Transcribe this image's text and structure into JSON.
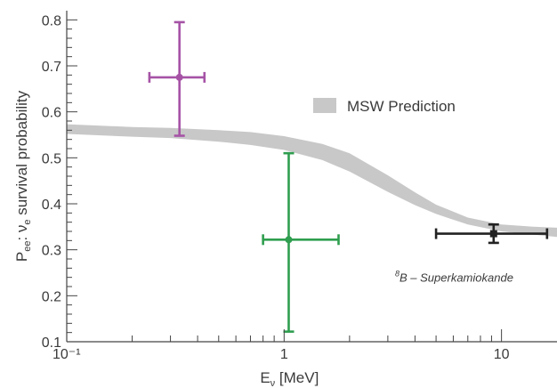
{
  "chart_data": {
    "type": "scatter",
    "title": "",
    "xlabel": {
      "base": "E",
      "sub": "ν",
      "tail": " [MeV]"
    },
    "ylabel": {
      "base": "P",
      "sub": "ee",
      "middle": ":  ν",
      "sub2": "e",
      "tail": " survival probability"
    },
    "x_scale": "log",
    "xlim": [
      0.1,
      18
    ],
    "ylim": [
      0.1,
      0.82
    ],
    "x_ticks": [
      {
        "value": 0.1,
        "label": "10⁻¹"
      },
      {
        "value": 1,
        "label": "1"
      },
      {
        "value": 10,
        "label": "10"
      }
    ],
    "y_ticks": [
      0.1,
      0.2,
      0.3,
      0.4,
      0.5,
      0.6,
      0.7,
      0.8
    ],
    "y_tick_labels": [
      "0.1",
      "0.2",
      "0.3",
      "0.4",
      "0.5",
      "0.6",
      "0.7",
      "0.8"
    ],
    "grid": false,
    "legend": {
      "position": "top-right",
      "entries": [
        {
          "label": "MSW Prediction",
          "color": "#c8c8c8"
        }
      ]
    },
    "band": {
      "name": "MSW Prediction",
      "color": "#c8c8c8",
      "x": [
        0.1,
        0.2,
        0.3,
        0.5,
        0.7,
        1.0,
        1.5,
        2.0,
        3.0,
        4.0,
        5.0,
        7.0,
        10.0,
        14.0,
        18.0
      ],
      "upper": [
        0.573,
        0.567,
        0.565,
        0.56,
        0.556,
        0.547,
        0.53,
        0.51,
        0.462,
        0.425,
        0.398,
        0.37,
        0.355,
        0.35,
        0.348
      ],
      "lower": [
        0.552,
        0.546,
        0.543,
        0.535,
        0.528,
        0.517,
        0.495,
        0.47,
        0.426,
        0.397,
        0.378,
        0.355,
        0.34,
        0.333,
        0.328
      ]
    },
    "points": [
      {
        "x": 0.33,
        "y": 0.675,
        "xerr": [
          0.24,
          0.43
        ],
        "yerr": [
          0.548,
          0.795
        ],
        "color": "#a653a6"
      },
      {
        "x": 1.05,
        "y": 0.322,
        "xerr": [
          0.8,
          1.78
        ],
        "yerr": [
          0.122,
          0.51
        ],
        "color": "#2f9e4f"
      },
      {
        "x": 9.2,
        "y": 0.335,
        "xerr": [
          5.0,
          16.2
        ],
        "yerr": [
          0.315,
          0.355
        ],
        "color": "#222222"
      }
    ],
    "annotations": [
      {
        "sup": "8",
        "text": "B – Superkamiokande",
        "x": 9.2,
        "y": 0.24
      }
    ]
  }
}
